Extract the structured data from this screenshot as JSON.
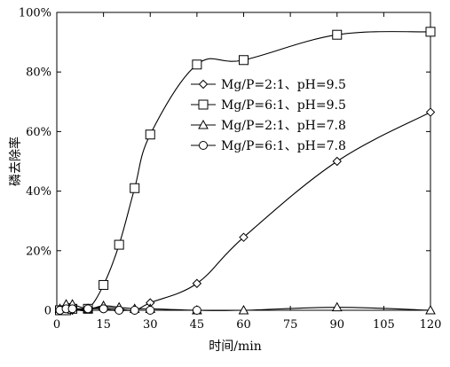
{
  "chart_data": {
    "type": "line",
    "xlabel": "时间/min",
    "ylabel": "磷去除率",
    "xlim": [
      0,
      120
    ],
    "ylim": [
      0,
      100
    ],
    "x_ticks": [
      0,
      15,
      30,
      45,
      60,
      75,
      90,
      105,
      120
    ],
    "y_ticks": [
      0,
      20,
      40,
      60,
      80,
      100
    ],
    "y_tick_labels": [
      "0",
      "20%",
      "40%",
      "60%",
      "80%",
      "100%"
    ],
    "grid": false,
    "legend_position": "center-right",
    "series": [
      {
        "name": "Mg/P=2:1、pH=9.5",
        "marker": "diamond",
        "x": [
          1,
          3,
          5,
          10,
          15,
          20,
          25,
          30,
          45,
          60,
          90,
          120
        ],
        "y": [
          0,
          0,
          0,
          0.5,
          1,
          0.5,
          0,
          2.5,
          9,
          24.5,
          50,
          66.5
        ]
      },
      {
        "name": "Mg/P=6:1、pH=9.5",
        "marker": "square",
        "x": [
          1,
          3,
          5,
          10,
          15,
          20,
          25,
          30,
          45,
          60,
          90,
          120
        ],
        "y": [
          0,
          0,
          0.5,
          0.5,
          8.5,
          22,
          41,
          59,
          82.5,
          84,
          92.5,
          93.5
        ]
      },
      {
        "name": "Mg/P=2:1、pH=7.8",
        "marker": "triangle",
        "x": [
          1,
          3,
          5,
          10,
          15,
          20,
          25,
          30,
          45,
          60,
          90,
          120
        ],
        "y": [
          0.5,
          2,
          2,
          0.5,
          1.5,
          1,
          0.5,
          0.5,
          0,
          0,
          1,
          0
        ]
      },
      {
        "name": "Mg/P=6:1、pH=7.8",
        "marker": "circle",
        "x": [
          1,
          3,
          5,
          10,
          15,
          20,
          25,
          30,
          45
        ],
        "y": [
          0,
          0.5,
          0.5,
          0.5,
          0.5,
          0,
          0,
          0,
          0
        ]
      }
    ]
  }
}
